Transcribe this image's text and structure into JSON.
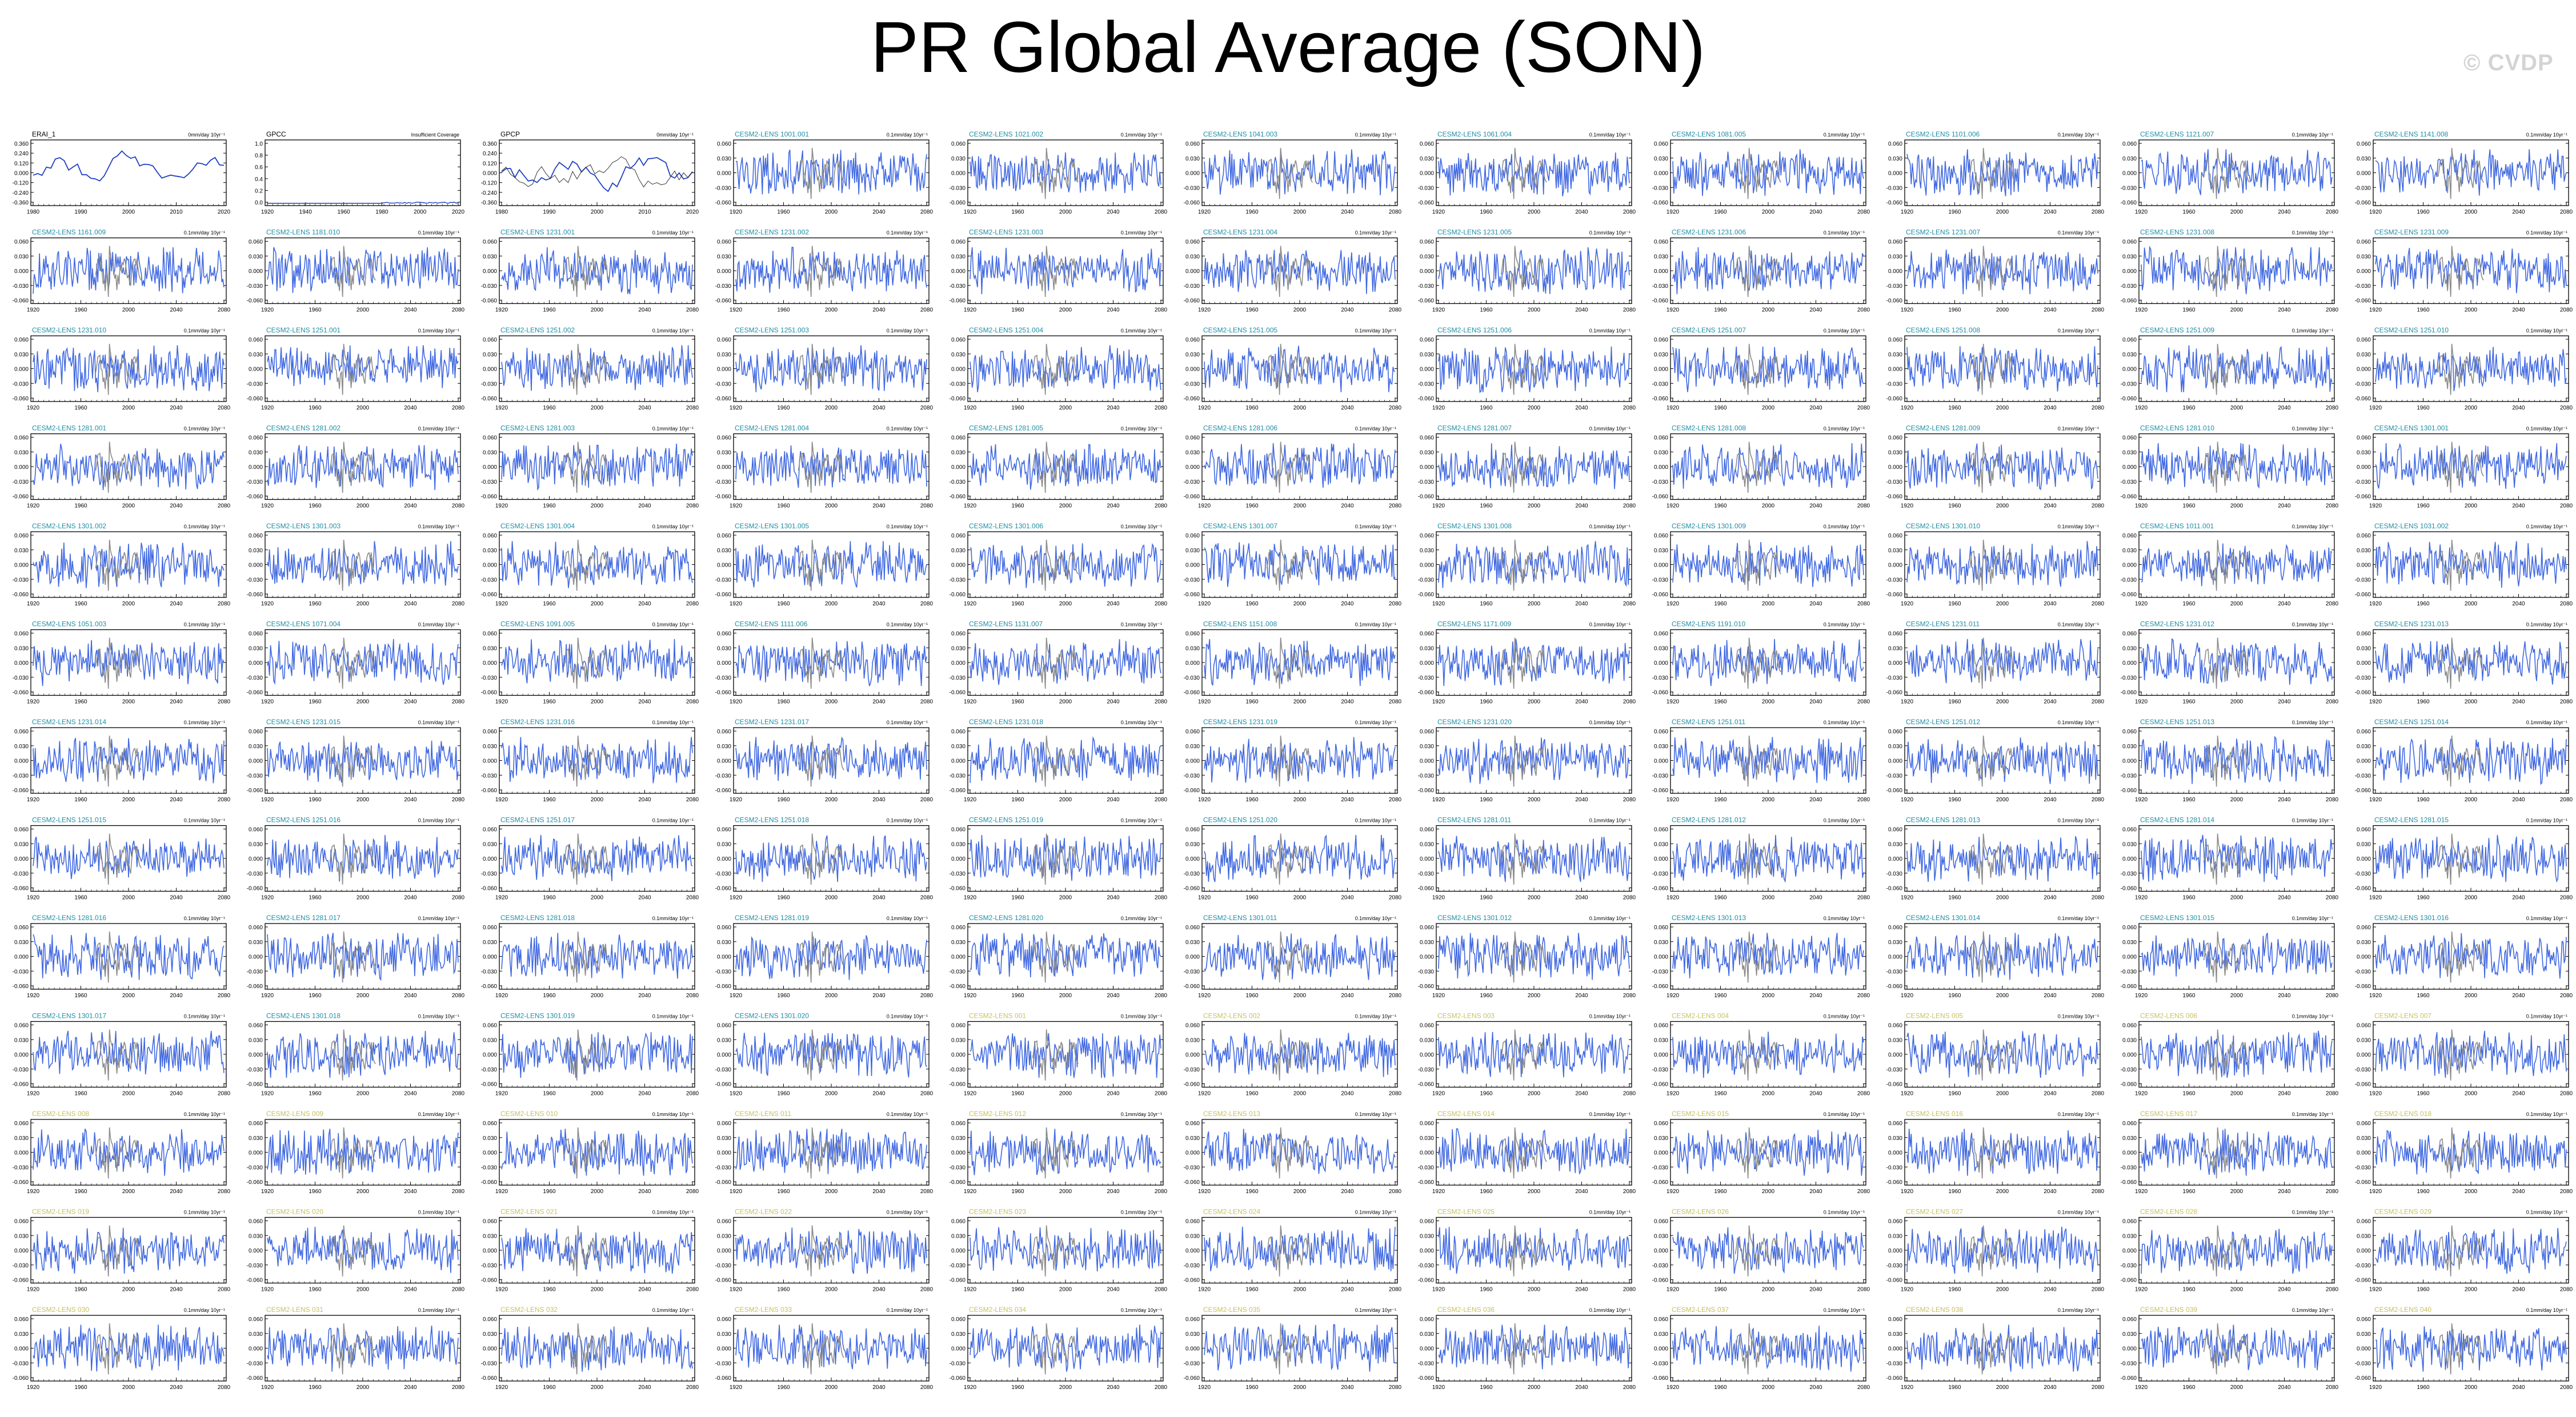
{
  "figure": {
    "title": "PR Global Average (SON)",
    "watermark": "© CVDP"
  },
  "colors": {
    "model_line": "#4169e1",
    "obs_line": "#8c8c8c",
    "obs_panel_line": "#1f3fc2",
    "label_teal": "#1e8fa6",
    "label_olive": "#c8c060",
    "label_black": "#000000"
  },
  "units_label": "0.1mm/day 10yr⁻¹",
  "obs_panels": [
    {
      "label": "ERAI_1",
      "right_label": "0mm/day 10yr⁻¹",
      "yticks": [
        "0.360",
        "0.240",
        "0.120",
        "0.000",
        "-0.120",
        "-0.240",
        "-0.360"
      ],
      "xticks": [
        "1980",
        "1990",
        "2000",
        "2010",
        "2020"
      ]
    },
    {
      "label": "GPCC",
      "right_label": "Insufficient Coverage",
      "yticks": [
        "1.0",
        "0.8",
        "0.6",
        "0.4",
        "0.2",
        "0.0"
      ],
      "xticks": [
        "1920",
        "1940",
        "1960",
        "1980",
        "2000",
        "2020"
      ]
    },
    {
      "label": "GPCP",
      "right_label": "0mm/day 10yr⁻¹",
      "yticks": [
        "0.360",
        "0.240",
        "0.120",
        "0.000",
        "-0.120",
        "-0.240",
        "-0.360"
      ],
      "xticks": [
        "1980",
        "1990",
        "2000",
        "2010",
        "2020"
      ]
    }
  ],
  "model_panels": {
    "yticks": [
      "0.060",
      "0.030",
      "0.000",
      "-0.030",
      "-0.060"
    ],
    "xticks": [
      "1920",
      "1960",
      "2000",
      "2040",
      "2080"
    ],
    "labels": [
      "CESM2-LENS 1001.001",
      "CESM2-LENS 1021.002",
      "CESM2-LENS 1041.003",
      "CESM2-LENS 1061.004",
      "CESM2-LENS 1081.005",
      "CESM2-LENS 1101.006",
      "CESM2-LENS 1121.007",
      "CESM2-LENS 1141.008",
      "CESM2-LENS 1161.009",
      "CESM2-LENS 1181.010",
      "CESM2-LENS 1231.001",
      "CESM2-LENS 1231.002",
      "CESM2-LENS 1231.003",
      "CESM2-LENS 1231.004",
      "CESM2-LENS 1231.005",
      "CESM2-LENS 1231.006",
      "CESM2-LENS 1231.007",
      "CESM2-LENS 1231.008",
      "CESM2-LENS 1231.009",
      "CESM2-LENS 1231.010",
      "CESM2-LENS 1251.001",
      "CESM2-LENS 1251.002",
      "CESM2-LENS 1251.003",
      "CESM2-LENS 1251.004",
      "CESM2-LENS 1251.005",
      "CESM2-LENS 1251.006",
      "CESM2-LENS 1251.007",
      "CESM2-LENS 1251.008",
      "CESM2-LENS 1251.009",
      "CESM2-LENS 1251.010",
      "CESM2-LENS 1281.001",
      "CESM2-LENS 1281.002",
      "CESM2-LENS 1281.003",
      "CESM2-LENS 1281.004",
      "CESM2-LENS 1281.005",
      "CESM2-LENS 1281.006",
      "CESM2-LENS 1281.007",
      "CESM2-LENS 1281.008",
      "CESM2-LENS 1281.009",
      "CESM2-LENS 1281.010",
      "CESM2-LENS 1301.001",
      "CESM2-LENS 1301.002",
      "CESM2-LENS 1301.003",
      "CESM2-LENS 1301.004",
      "CESM2-LENS 1301.005",
      "CESM2-LENS 1301.006",
      "CESM2-LENS 1301.007",
      "CESM2-LENS 1301.008",
      "CESM2-LENS 1301.009",
      "CESM2-LENS 1301.010",
      "CESM2-LENS 1011.001",
      "CESM2-LENS 1031.002",
      "CESM2-LENS 1051.003",
      "CESM2-LENS 1071.004",
      "CESM2-LENS 1091.005",
      "CESM2-LENS 1111.006",
      "CESM2-LENS 1131.007",
      "CESM2-LENS 1151.008",
      "CESM2-LENS 1171.009",
      "CESM2-LENS 1191.010",
      "CESM2-LENS 1231.011",
      "CESM2-LENS 1231.012",
      "CESM2-LENS 1231.013",
      "CESM2-LENS 1231.014",
      "CESM2-LENS 1231.015",
      "CESM2-LENS 1231.016",
      "CESM2-LENS 1231.017",
      "CESM2-LENS 1231.018",
      "CESM2-LENS 1231.019",
      "CESM2-LENS 1231.020",
      "CESM2-LENS 1251.011",
      "CESM2-LENS 1251.012",
      "CESM2-LENS 1251.013",
      "CESM2-LENS 1251.014",
      "CESM2-LENS 1251.015",
      "CESM2-LENS 1251.016",
      "CESM2-LENS 1251.017",
      "CESM2-LENS 1251.018",
      "CESM2-LENS 1251.019",
      "CESM2-LENS 1251.020",
      "CESM2-LENS 1281.011",
      "CESM2-LENS 1281.012",
      "CESM2-LENS 1281.013",
      "CESM2-LENS 1281.014",
      "CESM2-LENS 1281.015",
      "CESM2-LENS 1281.016",
      "CESM2-LENS 1281.017",
      "CESM2-LENS 1281.018",
      "CESM2-LENS 1281.019",
      "CESM2-LENS 1281.020",
      "CESM2-LENS 1301.011",
      "CESM2-LENS 1301.012",
      "CESM2-LENS 1301.013",
      "CESM2-LENS 1301.014",
      "CESM2-LENS 1301.015",
      "CESM2-LENS 1301.016",
      "CESM2-LENS 1301.017",
      "CESM2-LENS 1301.018",
      "CESM2-LENS 1301.019",
      "CESM2-LENS 1301.020",
      "CESM2-LENS 001",
      "CESM2-LENS 002",
      "CESM2-LENS 003",
      "CESM2-LENS 004",
      "CESM2-LENS 005",
      "CESM2-LENS 006",
      "CESM2-LENS 007",
      "CESM2-LENS 008",
      "CESM2-LENS 009",
      "CESM2-LENS 010",
      "CESM2-LENS 011",
      "CESM2-LENS 012",
      "CESM2-LENS 013",
      "CESM2-LENS 014",
      "CESM2-LENS 015",
      "CESM2-LENS 016",
      "CESM2-LENS 017",
      "CESM2-LENS 018",
      "CESM2-LENS 019",
      "CESM2-LENS 020",
      "CESM2-LENS 021",
      "CESM2-LENS 022",
      "CESM2-LENS 023",
      "CESM2-LENS 024",
      "CESM2-LENS 025",
      "CESM2-LENS 026",
      "CESM2-LENS 027",
      "CESM2-LENS 028",
      "CESM2-LENS 029",
      "CESM2-LENS 030",
      "CESM2-LENS 031",
      "CESM2-LENS 032",
      "CESM2-LENS 033",
      "CESM2-LENS 034",
      "CESM2-LENS 035",
      "CESM2-LENS 036",
      "CESM2-LENS 037",
      "CESM2-LENS 038",
      "CESM2-LENS 039",
      "CESM2-LENS 040"
    ]
  },
  "chart_data": {
    "type": "line",
    "title": "PR Global Average (SON)",
    "layout": "grid of 143 small multiples, 11 columns x 13 rows",
    "panels": 143,
    "series": [
      {
        "name": "",
        "note": "member timeseries (blue)"
      },
      {
        "name": "",
        "note": "observations overlay (gray)"
      }
    ],
    "obs_ylim": [
      -0.36,
      0.36
    ],
    "model_ylim": [
      -0.06,
      0.06
    ],
    "model_xlim": [
      1920,
      2100
    ],
    "obs_xlim": [
      1979,
      2022
    ],
    "grid": false
  }
}
